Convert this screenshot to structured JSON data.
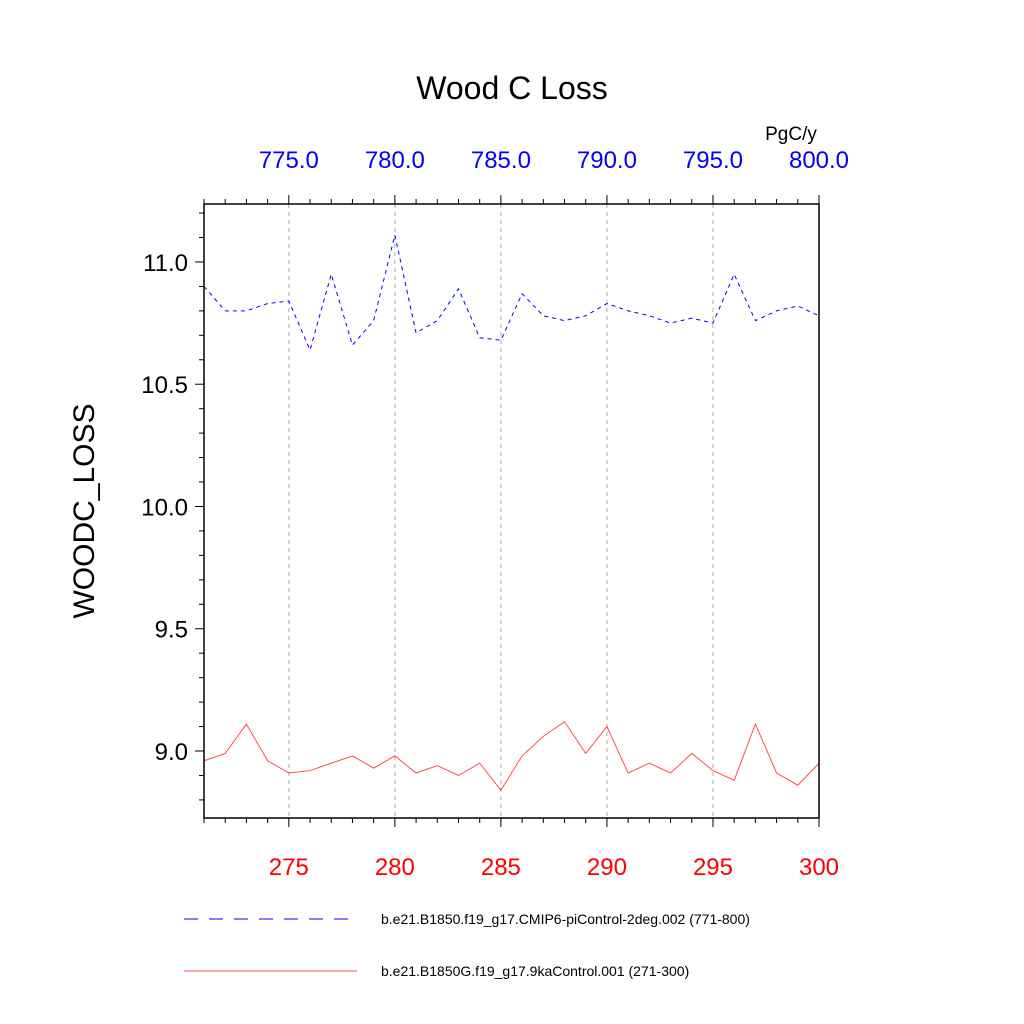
{
  "chart_data": {
    "type": "line",
    "title": "Wood C Loss",
    "units": "PgC/y",
    "ylabel": "WOODC_LOSS",
    "xlabel": "",
    "ylim": [
      8.726,
      11.237
    ],
    "xlim": [
      271,
      300
    ],
    "yticks": [
      "9.0",
      "9.5",
      "10.0",
      "10.5",
      "11.0"
    ],
    "ytick_values": [
      9.0,
      9.5,
      10.0,
      10.5,
      11.0
    ],
    "bottom_xticks": [
      "275",
      "280",
      "285",
      "290",
      "295",
      "300"
    ],
    "bottom_xtick_values": [
      275,
      280,
      285,
      290,
      295,
      300
    ],
    "top_xticks": [
      "775.0",
      "780.0",
      "785.0",
      "790.0",
      "795.0",
      "800.0"
    ],
    "top_xtick_values": [
      775,
      780,
      785,
      790,
      795,
      800
    ],
    "grid": "vertical dashed at major bottom ticks",
    "legend_position": "bottom",
    "x": [
      271,
      272,
      273,
      274,
      275,
      276,
      277,
      278,
      279,
      280,
      281,
      282,
      283,
      284,
      285,
      286,
      287,
      288,
      289,
      290,
      291,
      292,
      293,
      294,
      295,
      296,
      297,
      298,
      299,
      300
    ],
    "series": [
      {
        "name": "b.e21.B1850.f19_g17.CMIP6-piControl-2deg.002 (771-800)",
        "color": "#0000ff",
        "dash": true,
        "x_top": [
          771,
          800
        ],
        "values": [
          10.9,
          10.8,
          10.8,
          10.83,
          10.84,
          10.64,
          10.95,
          10.66,
          10.76,
          11.11,
          10.71,
          10.76,
          10.89,
          10.69,
          10.68,
          10.87,
          10.78,
          10.76,
          10.78,
          10.83,
          10.8,
          10.78,
          10.75,
          10.77,
          10.75,
          10.95,
          10.76,
          10.8,
          10.82,
          10.78
        ]
      },
      {
        "name": "b.e21.B1850G.f19_g17.9kaControl.001 (271-300)",
        "color": "#ff0000",
        "dash": false,
        "values": [
          8.96,
          8.99,
          9.11,
          8.96,
          8.91,
          8.92,
          8.95,
          8.98,
          8.93,
          8.98,
          8.91,
          8.94,
          8.9,
          8.95,
          8.84,
          8.98,
          9.06,
          9.12,
          8.99,
          9.1,
          8.91,
          8.95,
          8.91,
          8.99,
          8.92,
          8.88,
          9.11,
          8.91,
          8.86,
          8.95
        ]
      }
    ]
  }
}
